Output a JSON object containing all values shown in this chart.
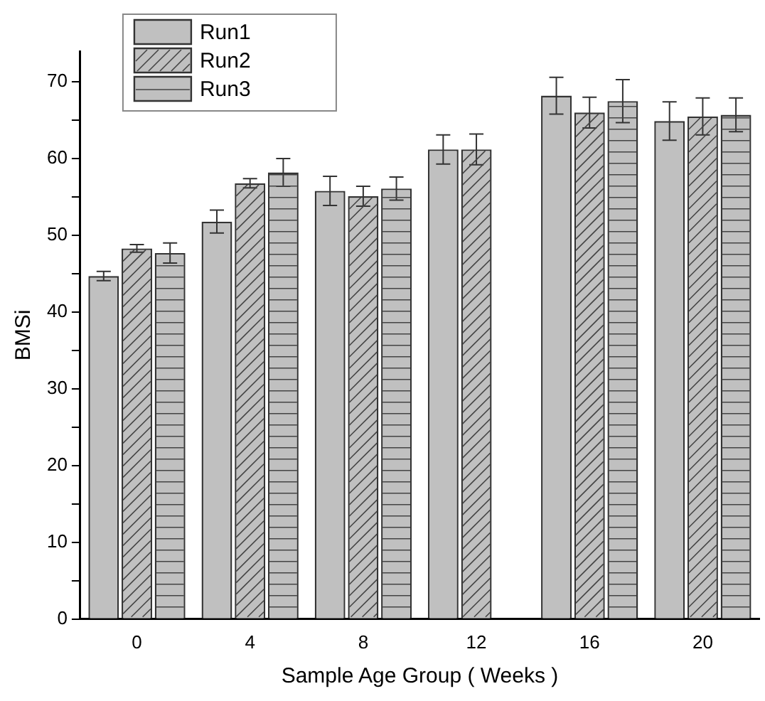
{
  "chart_data": {
    "type": "bar",
    "xlabel": "Sample Age Group ( Weeks )",
    "ylabel": "BMSi",
    "categories": [
      "0",
      "4",
      "8",
      "12",
      "16",
      "20"
    ],
    "series": [
      {
        "name": "Run1",
        "color": "#c0c0c0",
        "values": [
          44.7,
          51.8,
          55.8,
          61.2,
          68.2,
          64.9
        ],
        "errors": [
          0.6,
          1.5,
          1.9,
          1.9,
          2.4,
          2.5
        ]
      },
      {
        "name": "Run2",
        "color": "#c0c0c0",
        "values": [
          48.3,
          56.8,
          55.1,
          61.2,
          66.0,
          65.5
        ],
        "errors": [
          0.5,
          0.6,
          1.3,
          2.0,
          2.0,
          2.4
        ]
      },
      {
        "name": "Run3",
        "color": "#c0c0c0",
        "values": [
          47.7,
          58.2,
          56.1,
          null,
          67.5,
          65.7
        ],
        "errors": [
          1.3,
          1.8,
          1.5,
          null,
          2.8,
          2.2
        ]
      }
    ],
    "ylim": [
      0,
      74
    ],
    "yticks": [
      0,
      {
        "value": 5,
        "label": null
      },
      10,
      {
        "value": 15,
        "label": null
      },
      20,
      {
        "value": 25,
        "label": null
      },
      30,
      {
        "value": 35,
        "label": null
      },
      40,
      {
        "value": 45,
        "label": null
      },
      50,
      {
        "value": 55,
        "label": null
      },
      60,
      {
        "value": 65,
        "label": null
      },
      70
    ],
    "grid": false,
    "legend": "top left"
  }
}
